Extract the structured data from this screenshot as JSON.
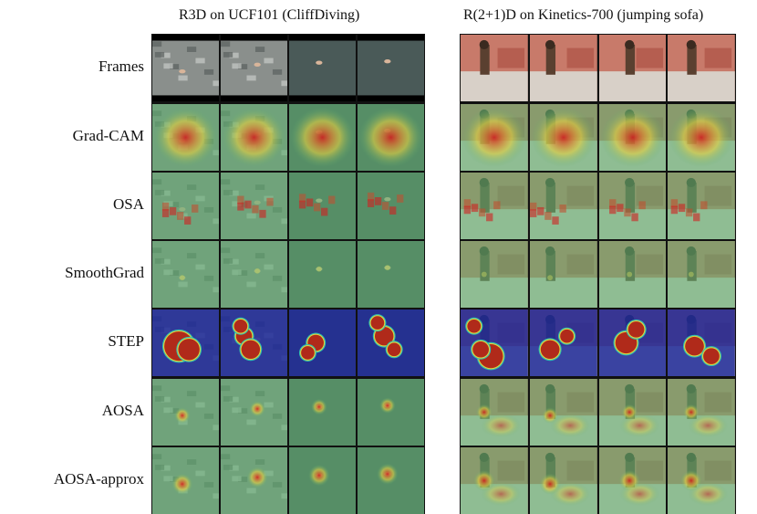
{
  "panels": [
    {
      "title": "R3D on UCF101 (CliffDiving)"
    },
    {
      "title": "R(2+1)D on Kinetics-700 (jumping sofa)"
    }
  ],
  "rows": [
    "Frames",
    "Grad-CAM",
    "OSA",
    "SmoothGrad",
    "STEP",
    "AOSA",
    "AOSA-approx"
  ],
  "colors": {
    "heat_low": "#5fb070",
    "heat_mid": "#e8d040",
    "heat_high": "#d02020",
    "step_bg": "#1e2a9a",
    "diving_bg": "#4a5a58",
    "sofa_wall": "#c87a6a"
  }
}
